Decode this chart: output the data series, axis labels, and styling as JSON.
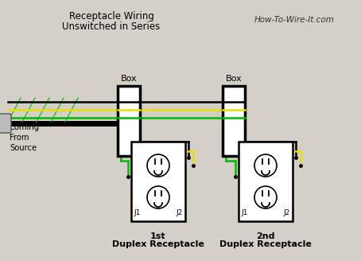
{
  "title1": "Receptacle Wiring",
  "title2": "Unswitched in Series",
  "watermark": "How-To-Wire-It.com",
  "bg_color": "#d4d0c8",
  "source_label": "Coming\nFrom\nSource",
  "label1_line1": "1st",
  "label1_line2": "Duplex Receptacle",
  "label2_line1": "2nd",
  "label2_line2": "Duplex Receptacle",
  "wire_black": "#000000",
  "wire_yellow": "#e8e000",
  "wire_green": "#00bb00",
  "box_edge": "#000000",
  "box_face": "#ffffff",
  "rec_face": "#ffffff",
  "plug_face": "#bbbbbb"
}
